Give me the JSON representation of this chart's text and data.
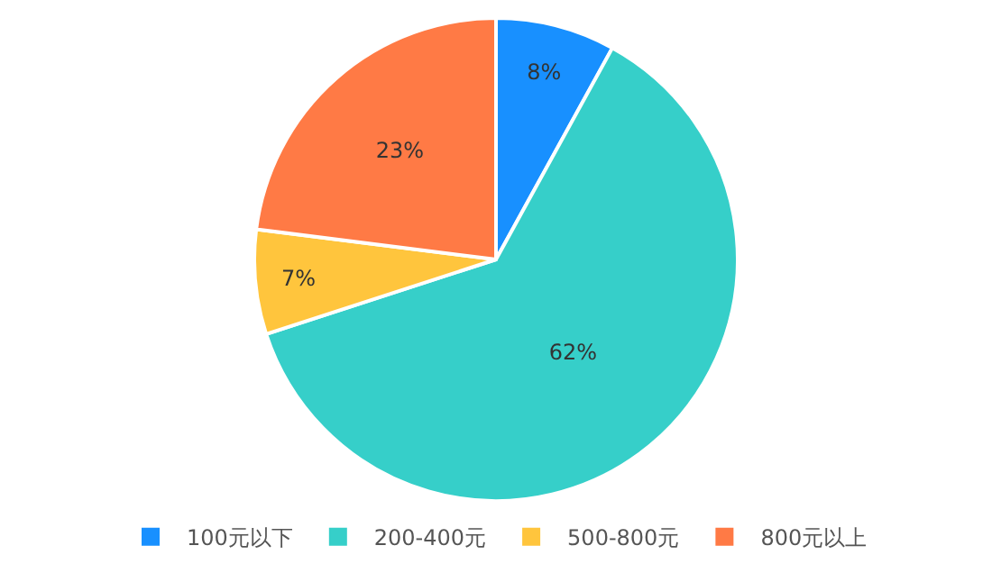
{
  "chart_data": {
    "type": "pie",
    "categories": [
      "100元以下",
      "200-400元",
      "500-800元",
      "800元以上"
    ],
    "values": [
      8,
      62,
      7,
      23
    ],
    "value_labels": [
      "8%",
      "62%",
      "7%",
      "23%"
    ],
    "colors": [
      "#1890ff",
      "#36cfc9",
      "#ffc53d",
      "#ff7a45"
    ],
    "legend": "bottom"
  }
}
